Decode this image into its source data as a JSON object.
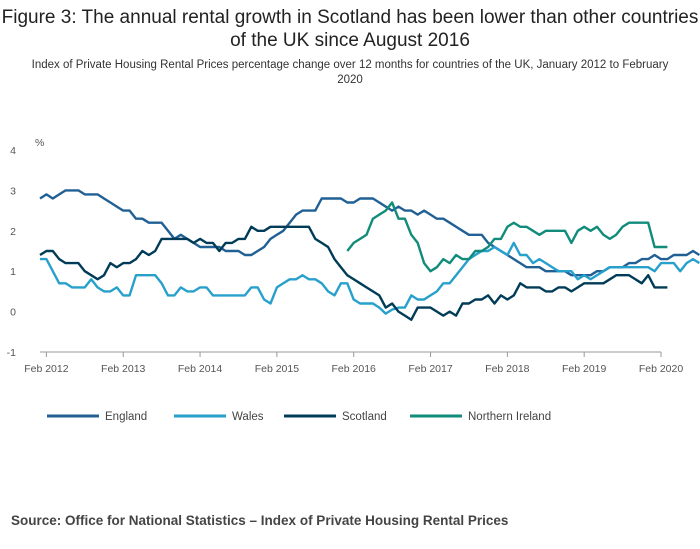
{
  "header": {
    "title": "Figure 3: The annual rental growth in Scotland has been lower than other countries of the UK since August 2016",
    "subtitle": "Index of Private Housing Rental Prices percentage change over 12 months for countries of the UK, January 2012 to February 2020"
  },
  "footer": {
    "source": "Source: Office for National Statistics – Index of Private Housing Rental Prices"
  },
  "chart_data": {
    "type": "line",
    "title": "Figure 3: The annual rental growth in Scotland has been lower than other countries of the UK since August 2016",
    "subtitle": "Index of Private Housing Rental Prices percentage change over 12 months for countries of the UK, January 2012 to February 2020",
    "xlabel": "",
    "ylabel": "%",
    "ylim": [
      -1,
      4
    ],
    "yticks": [
      -1,
      0,
      1,
      2,
      3,
      4
    ],
    "xlim": [
      "2012-01",
      "2020-02"
    ],
    "xticks": [
      "Feb 2012",
      "Feb 2013",
      "Feb 2014",
      "Feb 2015",
      "Feb 2016",
      "Feb 2017",
      "Feb 2018",
      "Feb 2019",
      "Feb 2020"
    ],
    "grid": false,
    "legend_position": "bottom",
    "source": "Source: Office for National Statistics – Index of Private Housing Rental Prices",
    "series": [
      {
        "name": "England",
        "color": "#206095",
        "start": "2012-01",
        "values": [
          2.8,
          2.9,
          2.8,
          2.9,
          3.0,
          3.0,
          3.0,
          2.9,
          2.9,
          2.9,
          2.8,
          2.7,
          2.6,
          2.5,
          2.5,
          2.3,
          2.3,
          2.2,
          2.2,
          2.2,
          2.0,
          1.8,
          1.9,
          1.8,
          1.7,
          1.6,
          1.6,
          1.6,
          1.6,
          1.5,
          1.5,
          1.5,
          1.4,
          1.4,
          1.5,
          1.6,
          1.8,
          1.9,
          2.0,
          2.2,
          2.4,
          2.5,
          2.5,
          2.5,
          2.8,
          2.8,
          2.8,
          2.8,
          2.7,
          2.7,
          2.8,
          2.8,
          2.8,
          2.7,
          2.6,
          2.5,
          2.6,
          2.5,
          2.5,
          2.4,
          2.5,
          2.4,
          2.3,
          2.3,
          2.2,
          2.1,
          2.0,
          1.9,
          1.9,
          1.9,
          1.7,
          1.6,
          1.5,
          1.4,
          1.3,
          1.2,
          1.1,
          1.1,
          1.1,
          1.0,
          1.0,
          1.0,
          1.0,
          0.9,
          0.9,
          0.9,
          0.9,
          1.0,
          1.0,
          1.1,
          1.1,
          1.1,
          1.2,
          1.2,
          1.3,
          1.3,
          1.4,
          1.3,
          1.3,
          1.4,
          1.4,
          1.4,
          1.5,
          1.4
        ]
      },
      {
        "name": "Wales",
        "color": "#27A0CC",
        "start": "2012-01",
        "values": [
          1.3,
          1.3,
          1.0,
          0.7,
          0.7,
          0.6,
          0.6,
          0.6,
          0.8,
          0.6,
          0.5,
          0.5,
          0.6,
          0.4,
          0.4,
          0.9,
          0.9,
          0.9,
          0.9,
          0.7,
          0.4,
          0.4,
          0.6,
          0.5,
          0.5,
          0.6,
          0.6,
          0.4,
          0.4,
          0.4,
          0.4,
          0.4,
          0.4,
          0.6,
          0.6,
          0.3,
          0.2,
          0.6,
          0.7,
          0.8,
          0.8,
          0.9,
          0.8,
          0.8,
          0.7,
          0.5,
          0.4,
          0.7,
          0.7,
          0.3,
          0.2,
          0.2,
          0.2,
          0.1,
          -0.05,
          0.05,
          0.1,
          0.1,
          0.4,
          0.3,
          0.3,
          0.4,
          0.5,
          0.7,
          0.7,
          0.9,
          1.1,
          1.3,
          1.4,
          1.5,
          1.5,
          1.6,
          1.5,
          1.4,
          1.7,
          1.4,
          1.4,
          1.2,
          1.3,
          1.2,
          1.1,
          1.0,
          1.0,
          1.0,
          0.8,
          0.9,
          0.8,
          0.9,
          1.0,
          1.1,
          1.1,
          1.1,
          1.1,
          1.1,
          1.1,
          1.1,
          1.0,
          1.2,
          1.2,
          1.2,
          1.0,
          1.2,
          1.3,
          1.2
        ]
      },
      {
        "name": "Scotland",
        "color": "#003C57",
        "start": "2012-01",
        "values": [
          1.4,
          1.5,
          1.5,
          1.3,
          1.2,
          1.2,
          1.2,
          1.0,
          0.9,
          0.8,
          0.9,
          1.2,
          1.1,
          1.2,
          1.2,
          1.3,
          1.5,
          1.4,
          1.5,
          1.8,
          1.8,
          1.8,
          1.8,
          1.8,
          1.7,
          1.8,
          1.7,
          1.7,
          1.5,
          1.7,
          1.7,
          1.8,
          1.8,
          2.1,
          2.0,
          2.0,
          2.1,
          2.1,
          2.1,
          2.1,
          2.1,
          2.1,
          2.1,
          1.8,
          1.7,
          1.6,
          1.3,
          1.1,
          0.9,
          0.8,
          0.7,
          0.6,
          0.5,
          0.4,
          0.1,
          0.2,
          0.0,
          -0.1,
          -0.2,
          0.1,
          0.1,
          0.1,
          0.0,
          -0.1,
          0.0,
          -0.1,
          0.2,
          0.2,
          0.3,
          0.3,
          0.4,
          0.2,
          0.4,
          0.3,
          0.4,
          0.7,
          0.6,
          0.6,
          0.6,
          0.5,
          0.5,
          0.6,
          0.6,
          0.5,
          0.6,
          0.7,
          0.7,
          0.7,
          0.7,
          0.8,
          0.9,
          0.9,
          0.9,
          0.8,
          0.7,
          0.9,
          0.6,
          0.6,
          0.6
        ]
      },
      {
        "name": "Northern Ireland",
        "color": "#118C7B",
        "start": "2016-01",
        "values": [
          1.5,
          1.7,
          1.8,
          1.9,
          2.3,
          2.4,
          2.5,
          2.7,
          2.3,
          2.3,
          1.9,
          1.7,
          1.2,
          1.0,
          1.1,
          1.3,
          1.2,
          1.4,
          1.3,
          1.3,
          1.5,
          1.5,
          1.6,
          1.8,
          1.8,
          2.1,
          2.2,
          2.1,
          2.1,
          2.0,
          1.9,
          2.0,
          2.0,
          2.0,
          2.0,
          1.7,
          2.0,
          2.1,
          2.0,
          2.1,
          1.9,
          1.8,
          1.9,
          2.1,
          2.2,
          2.2,
          2.2,
          2.2,
          1.6,
          1.6,
          1.6
        ]
      }
    ]
  }
}
